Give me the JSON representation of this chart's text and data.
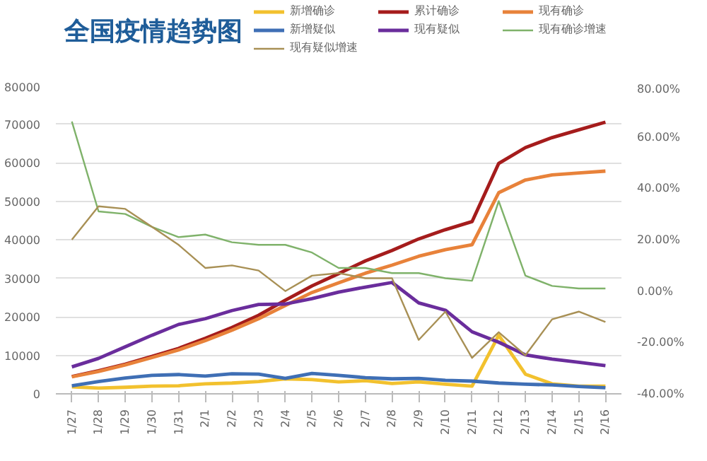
{
  "chart_data": {
    "type": "line",
    "title": "全国疫情趋势图",
    "categories": [
      "1/27",
      "1/28",
      "1/29",
      "1/30",
      "1/31",
      "2/1",
      "2/2",
      "2/3",
      "2/4",
      "2/5",
      "2/6",
      "2/7",
      "2/8",
      "2/9",
      "2/10",
      "2/11",
      "2/12",
      "2/13",
      "2/14",
      "2/15",
      "2/16"
    ],
    "series": [
      {
        "name": "新增确诊",
        "color": "#f2c12e",
        "values": [
          1800,
          1500,
          1700,
          2000,
          2100,
          2600,
          2800,
          3200,
          3900,
          3700,
          3100,
          3400,
          2700,
          3100,
          2500,
          2000,
          15200,
          5100,
          2600,
          2000,
          2000
        ]
      },
      {
        "name": "累计确诊",
        "color": "#a51c1c",
        "values": [
          4500,
          6000,
          7700,
          9700,
          11800,
          14400,
          17200,
          20400,
          24300,
          28000,
          31200,
          34500,
          37200,
          40200,
          42600,
          44700,
          59800,
          63900,
          66500,
          68500,
          70500
        ]
      },
      {
        "name": "现有确诊",
        "color": "#e8823a",
        "values": [
          4400,
          5800,
          7500,
          9400,
          11400,
          13800,
          16500,
          19500,
          22900,
          26300,
          28800,
          31300,
          33400,
          35700,
          37400,
          38700,
          52200,
          55500,
          56800,
          57300,
          57800
        ]
      },
      {
        "name": "新增疑似",
        "color": "#3f6fb5",
        "values": [
          2100,
          3200,
          4100,
          4800,
          5000,
          4600,
          5200,
          5100,
          4000,
          5300,
          4800,
          4200,
          3900,
          4000,
          3500,
          3300,
          2800,
          2500,
          2300,
          1900,
          1600
        ]
      },
      {
        "name": "现有疑似",
        "color": "#6a2d9c",
        "values": [
          7000,
          9200,
          12200,
          15200,
          18000,
          19500,
          21600,
          23200,
          23300,
          24700,
          26400,
          27700,
          28900,
          23600,
          21700,
          16100,
          13400,
          10100,
          9000,
          8200,
          7300
        ]
      },
      {
        "name": "现有确诊增速",
        "color": "#7fb26a",
        "axis": "y2",
        "values": [
          66,
          31,
          30,
          25,
          21,
          22,
          19,
          18,
          18,
          15,
          9,
          9,
          7,
          7,
          5,
          4,
          35,
          6,
          2,
          1,
          1
        ]
      },
      {
        "name": "现有疑似增速",
        "color": "#a89055",
        "axis": "y2",
        "values": [
          20,
          33,
          32,
          25,
          18,
          9,
          10,
          8,
          0,
          6,
          7,
          5,
          5,
          -19,
          -8,
          -26,
          -16,
          -25,
          -11,
          -8,
          -12
        ]
      }
    ],
    "ylim": [
      0,
      80000
    ],
    "yticks": [
      0,
      10000,
      20000,
      30000,
      40000,
      50000,
      60000,
      70000,
      80000
    ],
    "y2lim": [
      -40,
      80
    ],
    "y2ticks": [
      {
        "value": -40,
        "label": "-40.00%"
      },
      {
        "value": -20,
        "label": "-20.00%"
      },
      {
        "value": 0,
        "label": "0.00%"
      },
      {
        "value": 20,
        "label": "20.00%"
      },
      {
        "value": 40,
        "label": "40.00%"
      },
      {
        "value": 60,
        "label": "60.00%"
      },
      {
        "value": 80,
        "label": "80.00%"
      }
    ],
    "grid": "y",
    "legend": "top right",
    "marker": "none",
    "line_style": "solid"
  }
}
